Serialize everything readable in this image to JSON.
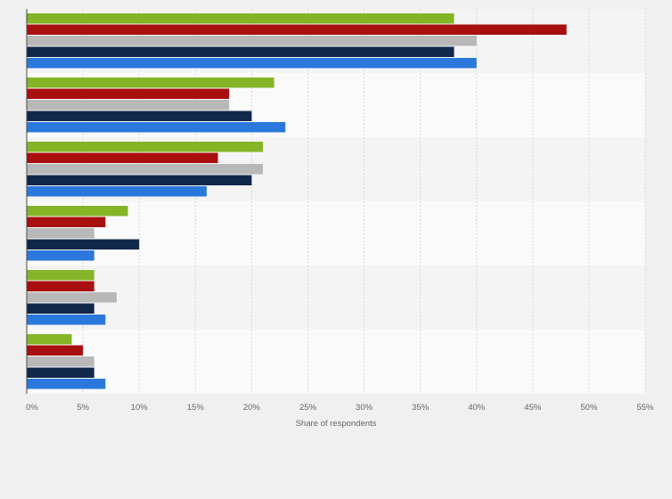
{
  "chart_data": {
    "type": "bar",
    "orientation": "horizontal",
    "xlabel": "Share of respondents",
    "xlim": [
      0,
      55
    ],
    "x_ticks": [
      "0%",
      "5%",
      "10%",
      "15%",
      "20%",
      "25%",
      "30%",
      "35%",
      "40%",
      "45%",
      "50%",
      "55%"
    ],
    "grid": true,
    "legend": false,
    "group_count": 6,
    "series": [
      {
        "color": "#84b527",
        "values": [
          38,
          22,
          21,
          9,
          6,
          4
        ]
      },
      {
        "color": "#a80f10",
        "values": [
          48,
          18,
          17,
          7,
          6,
          5
        ]
      },
      {
        "color": "#b8b8b8",
        "values": [
          40,
          18,
          21,
          6,
          8,
          6
        ]
      },
      {
        "color": "#10284a",
        "values": [
          38,
          20,
          20,
          10,
          6,
          6
        ]
      },
      {
        "color": "#2b78dc",
        "values": [
          40,
          23,
          16,
          6,
          7,
          7
        ]
      }
    ]
  }
}
